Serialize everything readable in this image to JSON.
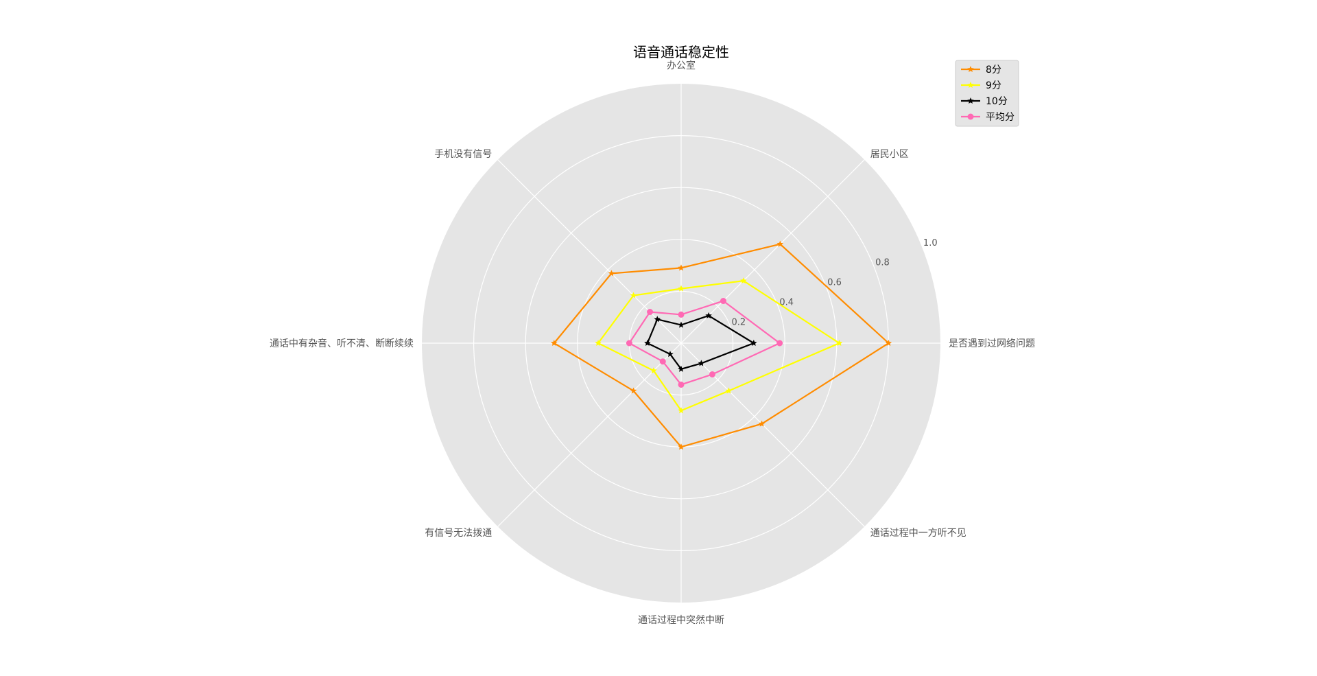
{
  "chart_data": {
    "type": "radar",
    "title": "语音通话稳定性",
    "categories": [
      "是否遇到过网络问题",
      "居民小区",
      "办公室",
      "手机没有信号",
      "通话中有杂音、听不清、断断续续",
      "有信号无法拨通",
      "通话过程中突然中断",
      "通话过程中一方听不见"
    ],
    "rlim": [
      0,
      1.0
    ],
    "rticks": [
      0.2,
      0.4,
      0.6,
      0.8,
      1.0
    ],
    "rtick_labels": [
      "0.2",
      "0.4",
      "0.6",
      "0.8",
      "1.0"
    ],
    "grid": true,
    "legend_position": "top-right",
    "series": [
      {
        "name": "8分",
        "color": "#ff8c00",
        "marker": "star",
        "values": [
          0.8,
          0.54,
          0.29,
          0.38,
          0.49,
          0.26,
          0.4,
          0.44
        ]
      },
      {
        "name": "9分",
        "color": "#ffff00",
        "marker": "star",
        "values": [
          0.61,
          0.34,
          0.21,
          0.26,
          0.32,
          0.15,
          0.26,
          0.26
        ]
      },
      {
        "name": "10分",
        "color": "#000000",
        "marker": "star",
        "values": [
          0.28,
          0.15,
          0.07,
          0.13,
          0.13,
          0.06,
          0.1,
          0.11
        ]
      },
      {
        "name": "平均分",
        "color": "#ff69b4",
        "marker": "circle",
        "values": [
          0.38,
          0.23,
          0.11,
          0.17,
          0.2,
          0.1,
          0.16,
          0.17
        ]
      }
    ]
  }
}
